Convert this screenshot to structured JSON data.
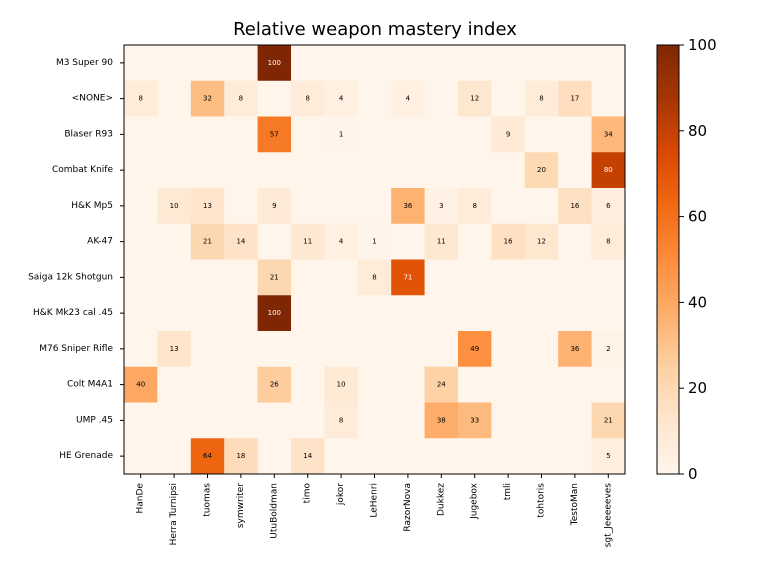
{
  "chart_data": {
    "type": "heatmap",
    "title": "Relative weapon mastery index",
    "rows": [
      "M3 Super 90",
      "<NONE>",
      "Blaser R93",
      "Combat Knife",
      "H&K Mp5",
      "AK-47",
      "Saiga 12k Shotgun",
      "H&K Mk23 cal .45",
      "M76 Sniper Rifle",
      "Colt M4A1",
      "UMP .45",
      "HE Grenade"
    ],
    "columns": [
      "HanDe",
      "Herra Turnipsi",
      "tuomas",
      "symwriter",
      "UtuBoldman",
      "timo",
      "jokor",
      "LeHenri",
      "RazorNova",
      "Dukkez",
      "Jugebox",
      "tmli",
      "tohtoris",
      "TestoMan",
      "sgt_Jeeeeeves"
    ],
    "values": [
      [
        0,
        0,
        0,
        0,
        100,
        0,
        0,
        0,
        0,
        0,
        0,
        0,
        0,
        0,
        0
      ],
      [
        8,
        0,
        32,
        8,
        0,
        8,
        4,
        0,
        4,
        0,
        12,
        0,
        8,
        17,
        0
      ],
      [
        0,
        0,
        0,
        0,
        57,
        0,
        1,
        0,
        0,
        0,
        0,
        9,
        0,
        0,
        34
      ],
      [
        0,
        0,
        0,
        0,
        0,
        0,
        0,
        0,
        0,
        0,
        0,
        0,
        20,
        0,
        80
      ],
      [
        0,
        10,
        13,
        0,
        9,
        0,
        0,
        0,
        36,
        3,
        8,
        0,
        0,
        16,
        6
      ],
      [
        0,
        0,
        21,
        14,
        0,
        11,
        4,
        1,
        0,
        11,
        0,
        16,
        12,
        0,
        8
      ],
      [
        0,
        0,
        0,
        0,
        21,
        0,
        0,
        8,
        71,
        0,
        0,
        0,
        0,
        0,
        0
      ],
      [
        0,
        0,
        0,
        0,
        100,
        0,
        0,
        0,
        0,
        0,
        0,
        0,
        0,
        0,
        0
      ],
      [
        0,
        13,
        0,
        0,
        0,
        0,
        0,
        0,
        0,
        0,
        49,
        0,
        0,
        36,
        2
      ],
      [
        40,
        0,
        0,
        0,
        26,
        0,
        10,
        0,
        0,
        24,
        0,
        0,
        0,
        0,
        0
      ],
      [
        0,
        0,
        0,
        0,
        0,
        0,
        8,
        0,
        0,
        38,
        33,
        0,
        0,
        0,
        21
      ],
      [
        0,
        0,
        64,
        18,
        0,
        14,
        0,
        0,
        0,
        0,
        0,
        0,
        0,
        0,
        5
      ]
    ],
    "colorbar": {
      "range": [
        0,
        100
      ],
      "ticks": [
        0,
        20,
        40,
        60,
        80,
        100
      ],
      "colormap": "Oranges",
      "color_low": "#fff5eb",
      "color_high": "#7f2704"
    }
  }
}
